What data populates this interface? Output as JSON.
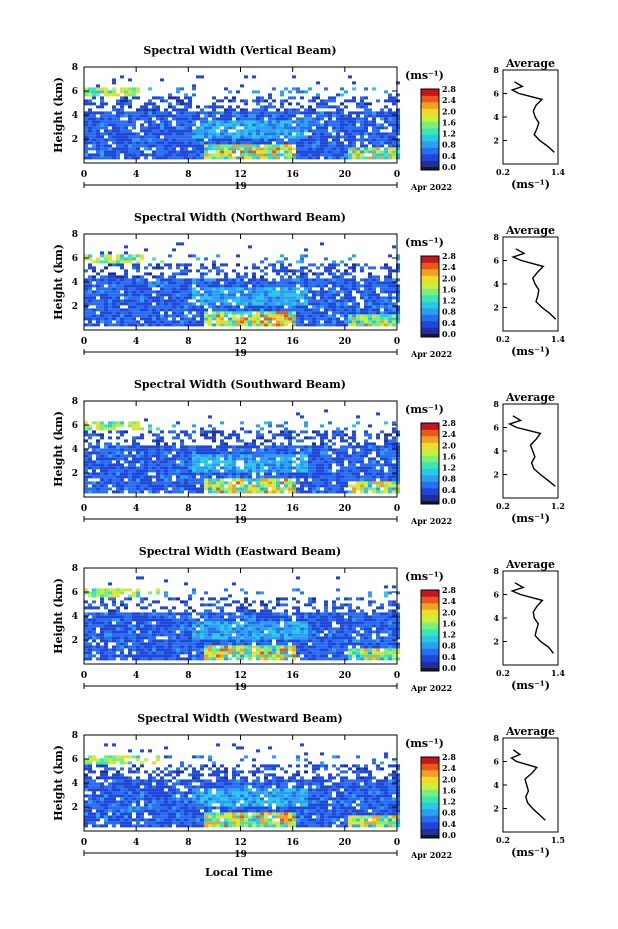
{
  "figure": {
    "local_time_label": "Local Time",
    "colorbar_ticks": [
      "0.0",
      "0.4",
      "0.8",
      "1.2",
      "1.6",
      "2.0",
      "2.4",
      "2.8"
    ],
    "colorbar_unit": "(ms⁻¹)",
    "avg_xunit": "(ms⁻¹)",
    "x_ticks": [
      "0",
      "4",
      "8",
      "12",
      "16",
      "20",
      "0"
    ],
    "day_label": "19",
    "month_label": "Apr 2022",
    "avg_title": "Average",
    "ylabel": "Height (km)",
    "y_ticks": [
      "2",
      "4",
      "6",
      "8"
    ],
    "colors": {
      "colormap": [
        "#1a1a1a",
        "#1f2f9f",
        "#2048d8",
        "#2a6ef0",
        "#2aa0f0",
        "#28c8e6",
        "#3ce6b4",
        "#78f07c",
        "#c8f03c",
        "#f0dc28",
        "#f0a024",
        "#e85a1c",
        "#c8141c"
      ]
    }
  },
  "panels": [
    {
      "title": "Spectral Width (Vertical Beam)",
      "avg_xticks": [
        "0.2",
        "1.4"
      ],
      "avg_xlim": [
        0.2,
        1.4
      ]
    },
    {
      "title": "Spectral Width (Northward Beam)",
      "avg_xticks": [
        "0.2",
        "1.4"
      ],
      "avg_xlim": [
        0.2,
        1.4
      ]
    },
    {
      "title": "Spectral Width (Southward Beam)",
      "avg_xticks": [
        "0.2",
        "1.2"
      ],
      "avg_xlim": [
        0.2,
        1.2
      ]
    },
    {
      "title": "Spectral Width (Eastward Beam)",
      "avg_xticks": [
        "0.2",
        "1.4"
      ],
      "avg_xlim": [
        0.2,
        1.4
      ]
    },
    {
      "title": "Spectral Width (Westward Beam)",
      "avg_xticks": [
        "0.2",
        "1.5"
      ],
      "avg_xlim": [
        0.2,
        1.5
      ]
    }
  ],
  "chart_data": [
    {
      "type": "heatmap",
      "title": "Spectral Width (Vertical Beam)",
      "xlabel": "",
      "ylabel": "Height (km)",
      "xlim": [
        0,
        24
      ],
      "ylim": [
        0,
        8
      ],
      "colorbar_range": [
        0,
        2.8
      ]
    },
    {
      "type": "line",
      "title": "Average",
      "ylim": [
        0,
        8
      ],
      "xlim": [
        0.2,
        1.4
      ],
      "y": [
        1.0,
        1.5,
        2.0,
        2.5,
        3.0,
        3.5,
        4.0,
        4.5,
        5.0,
        5.5,
        6.0,
        6.3,
        6.6,
        7.0
      ],
      "x": [
        1.32,
        1.18,
        1.0,
        0.88,
        0.94,
        0.98,
        0.9,
        0.86,
        0.92,
        1.05,
        0.55,
        0.4,
        0.62,
        0.45
      ]
    },
    {
      "type": "heatmap",
      "title": "Spectral Width (Northward Beam)",
      "xlabel": "",
      "ylabel": "Height (km)",
      "xlim": [
        0,
        24
      ],
      "ylim": [
        0,
        8
      ],
      "colorbar_range": [
        0,
        2.8
      ]
    },
    {
      "type": "line",
      "title": "Average",
      "ylim": [
        0,
        8
      ],
      "xlim": [
        0.2,
        1.4
      ],
      "y": [
        1.0,
        1.5,
        2.0,
        2.5,
        3.0,
        3.5,
        4.0,
        4.5,
        5.0,
        5.5,
        6.0,
        6.3,
        6.6,
        7.0
      ],
      "x": [
        1.35,
        1.22,
        1.05,
        0.92,
        0.96,
        0.98,
        0.9,
        0.85,
        0.95,
        1.08,
        0.6,
        0.42,
        0.66,
        0.48
      ]
    },
    {
      "type": "heatmap",
      "title": "Spectral Width (Southward Beam)",
      "xlabel": "",
      "ylabel": "Height (km)",
      "xlim": [
        0,
        24
      ],
      "ylim": [
        0,
        8
      ],
      "colorbar_range": [
        0,
        2.8
      ]
    },
    {
      "type": "line",
      "title": "Average",
      "ylim": [
        0,
        8
      ],
      "xlim": [
        0.2,
        1.2
      ],
      "y": [
        1.0,
        1.5,
        2.0,
        2.5,
        3.0,
        3.5,
        4.0,
        4.5,
        5.0,
        5.5,
        6.0,
        6.3,
        6.6,
        7.0
      ],
      "x": [
        1.15,
        1.02,
        0.88,
        0.76,
        0.72,
        0.78,
        0.74,
        0.7,
        0.8,
        0.88,
        0.45,
        0.32,
        0.52,
        0.38
      ]
    },
    {
      "type": "heatmap",
      "title": "Spectral Width (Eastward Beam)",
      "xlabel": "",
      "ylabel": "Height (km)",
      "xlim": [
        0,
        24
      ],
      "ylim": [
        0,
        8
      ],
      "colorbar_range": [
        0,
        2.8
      ]
    },
    {
      "type": "line",
      "title": "Average",
      "ylim": [
        0,
        8
      ],
      "xlim": [
        0.2,
        1.4
      ],
      "y": [
        1.0,
        1.5,
        2.0,
        2.5,
        3.0,
        3.5,
        4.0,
        4.5,
        5.0,
        5.5,
        6.0,
        6.3,
        6.6,
        7.0
      ],
      "x": [
        1.3,
        1.2,
        1.02,
        0.9,
        0.93,
        0.97,
        0.88,
        0.86,
        0.94,
        1.06,
        0.58,
        0.4,
        0.64,
        0.46
      ]
    },
    {
      "type": "heatmap",
      "title": "Spectral Width (Westward Beam)",
      "xlabel": "",
      "ylabel": "Height (km)",
      "xlim": [
        0,
        24
      ],
      "ylim": [
        0,
        8
      ],
      "colorbar_range": [
        0,
        2.8
      ]
    },
    {
      "type": "line",
      "title": "Average",
      "ylim": [
        0,
        8
      ],
      "xlim": [
        0.2,
        1.5
      ],
      "y": [
        1.0,
        1.5,
        2.0,
        2.5,
        3.0,
        3.5,
        4.0,
        4.5,
        5.0,
        5.5,
        6.0,
        6.3,
        6.6,
        7.0
      ],
      "x": [
        1.2,
        1.05,
        0.9,
        0.78,
        0.74,
        0.8,
        0.76,
        0.72,
        0.88,
        1.0,
        0.52,
        0.4,
        0.6,
        0.44
      ]
    }
  ]
}
